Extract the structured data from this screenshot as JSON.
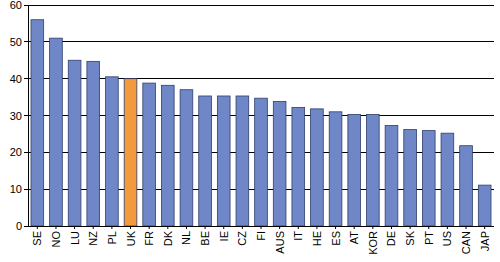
{
  "chart_data": {
    "type": "bar",
    "categories": [
      "SE",
      "NO",
      "LU",
      "NZ",
      "PL",
      "UK",
      "FR",
      "DK",
      "NL",
      "BE",
      "IE",
      "CZ",
      "FI",
      "AUS",
      "IT",
      "HE",
      "ES",
      "AT",
      "KOR",
      "DE",
      "SK",
      "PT",
      "US",
      "CAN",
      "JAP"
    ],
    "values": [
      56,
      51,
      45,
      44.7,
      40.5,
      40,
      38.8,
      38.2,
      37,
      35.3,
      35.3,
      35.3,
      34.7,
      33.8,
      32.2,
      31.8,
      31,
      30.3,
      30.3,
      27.3,
      26.2,
      25.9,
      25.2,
      21.8,
      11.1
    ],
    "colors": [
      "#6f87c6",
      "#6f87c6",
      "#6f87c6",
      "#6f87c6",
      "#6f87c6",
      "#f39a3e",
      "#6f87c6",
      "#6f87c6",
      "#6f87c6",
      "#6f87c6",
      "#6f87c6",
      "#6f87c6",
      "#6f87c6",
      "#6f87c6",
      "#6f87c6",
      "#6f87c6",
      "#6f87c6",
      "#6f87c6",
      "#6f87c6",
      "#6f87c6",
      "#6f87c6",
      "#6f87c6",
      "#6f87c6",
      "#6f87c6",
      "#6f87c6"
    ],
    "ylim": [
      0,
      60
    ],
    "yticks": [
      0,
      10,
      20,
      30,
      40,
      50,
      60
    ],
    "grid": true
  }
}
